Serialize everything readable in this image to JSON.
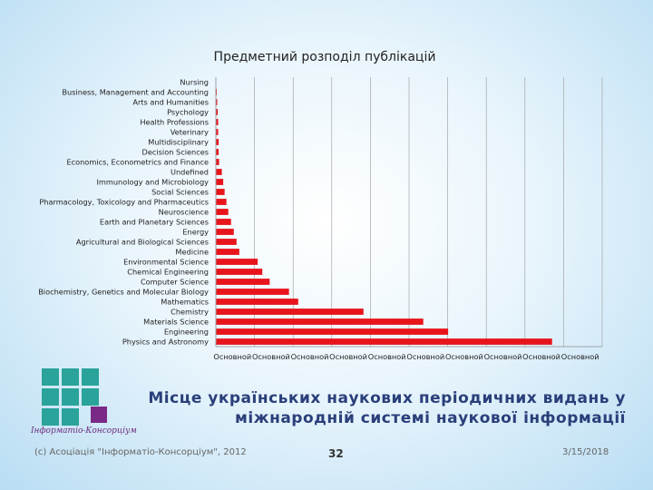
{
  "slide": {
    "title_line1": "Місце українських наукових періодичних видань у",
    "title_line2": "міжнародній системі наукової інформації",
    "footer_left": "(с) Асоціація \"Інформатіо-Консорціум\", 2012",
    "page_number": "32",
    "date": "3/15/2018",
    "logo_text": "Інформатіо-Консорціум",
    "colors": {
      "bar": "#e8141c",
      "title": "#2a3f7a",
      "logo_teal": "#2aa39a",
      "logo_purple": "#7a2a86"
    }
  },
  "chart_data": {
    "type": "bar",
    "orientation": "horizontal",
    "title": "Предметний розподіл публікацій",
    "categories": [
      "Nursing",
      "Business, Management and Accounting",
      "Arts and Humanities",
      "Psychology",
      "Health Professions",
      "Veterinary",
      "Multidisciplinary",
      "Decision Sciences",
      "Economics, Econometrics and Finance",
      "Undefined",
      "Immunology and Microbiology",
      "Social Sciences",
      "Pharmacology, Toxicology and Pharmaceutics",
      "Neuroscience",
      "Earth and Planetary Sciences",
      "Energy",
      "Agricultural and Biological Sciences",
      "Medicine",
      "Environmental Science",
      "Chemical Engineering",
      "Computer Science",
      "Biochemistry, Genetics and Molecular Biology",
      "Mathematics",
      "Chemistry",
      "Materials Science",
      "Engineering",
      "Physics and Astronomy"
    ],
    "values": [
      0.0,
      0.05,
      0.1,
      0.15,
      0.2,
      0.2,
      0.25,
      0.25,
      0.3,
      0.6,
      0.75,
      0.9,
      1.1,
      1.3,
      1.6,
      1.9,
      2.2,
      2.5,
      4.5,
      5.0,
      5.8,
      7.9,
      8.9,
      16.0,
      22.5,
      25.2,
      36.5
    ],
    "xlim": [
      0,
      42
    ],
    "x_ticks": [
      "Основной",
      "Основной",
      "Основной",
      "Основной",
      "Основной",
      "Основной",
      "Основной",
      "Основной",
      "Основной",
      "Основной"
    ],
    "grid": true,
    "legend": "none"
  }
}
